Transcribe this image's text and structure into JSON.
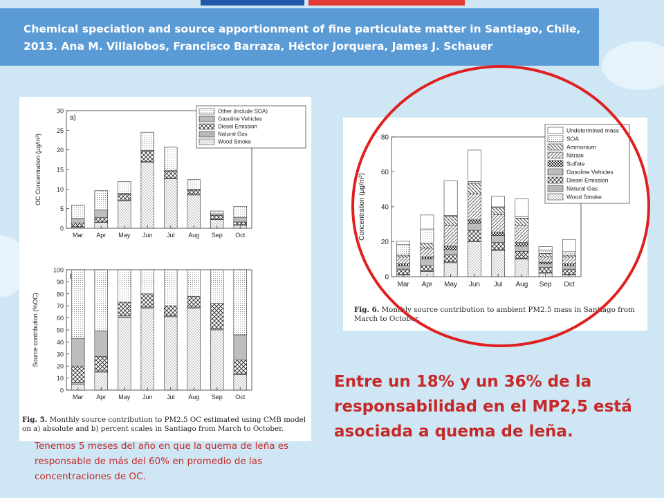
{
  "title": "Chemical speciation and source apportionment of fine particulate matter in Santiago, Chile, 2013. Ana M. Villalobos, Francisco Barraza, Héctor Jorquera, James J. Schauer",
  "note_small": "Tenemos 5 meses del año en que la quema de leña es responsable de más del 60% en promedio de las concentraciones de OC.",
  "note_big": "Entre un 18% y un 36% de la responsabilidad en el MP2,5 está asociada a quema de leña.",
  "colors": {
    "accent_red": "#c62828",
    "banner_blue": "#5b9bd5",
    "circle_red": "#e02020"
  },
  "fig5": {
    "caption_label": "Fig. 5.",
    "caption_text": " Monthly source contribution to PM2.5 OC estimated using CMB model on a) absolute and b) percent scales in Santiago from March to October."
  },
  "fig6": {
    "caption_label": "Fig. 6.",
    "caption_text": " Monthly source contribution to ambient PM2.5 mass in Santiago from March to October."
  },
  "chart_data": [
    {
      "type": "bar",
      "panel_label": "a)",
      "ylabel": "OC Concentration (μg/m³)",
      "ylim": [
        0,
        30
      ],
      "yticks": [
        0,
        5,
        10,
        15,
        20,
        25,
        30
      ],
      "categories": [
        "Mar",
        "Apr",
        "May",
        "Jun",
        "Jul",
        "Aug",
        "Sep",
        "Oct"
      ],
      "legend": "top-right",
      "series": [
        {
          "name": "Wood Smoke",
          "pattern": "dots",
          "values": [
            0.3,
            1.5,
            7.0,
            16.8,
            12.6,
            8.5,
            2.2,
            0.8
          ]
        },
        {
          "name": "Natural Gas",
          "pattern": "gray",
          "values": [
            0.1,
            0.1,
            0.2,
            0.2,
            0.2,
            0.2,
            0.1,
            0.1
          ]
        },
        {
          "name": "Diesel Emission",
          "pattern": "cross",
          "values": [
            0.9,
            1.1,
            1.4,
            2.6,
            1.7,
            1.0,
            1.0,
            0.7
          ]
        },
        {
          "name": "Gasoline Vehicles",
          "pattern": "vlines",
          "values": [
            1.2,
            2.0,
            0.3,
            0.3,
            0.3,
            0.3,
            0.4,
            1.2
          ]
        },
        {
          "name": "Other (include SOA)",
          "pattern": "fine",
          "values": [
            3.4,
            4.9,
            3.0,
            4.6,
            5.9,
            2.4,
            0.7,
            2.8
          ]
        }
      ]
    },
    {
      "type": "bar",
      "panel_label": "b)",
      "ylabel": "Source contribution (%OC)",
      "ylim": [
        0,
        100
      ],
      "yticks": [
        0,
        10,
        20,
        30,
        40,
        50,
        60,
        70,
        80,
        90,
        100
      ],
      "categories": [
        "Mar",
        "Apr",
        "May",
        "Jun",
        "Jul",
        "Aug",
        "Sep",
        "Oct"
      ],
      "series": [
        {
          "name": "Wood Smoke",
          "pattern": "dots",
          "values": [
            5,
            15,
            60,
            68,
            61,
            68,
            50,
            13
          ]
        },
        {
          "name": "Natural Gas",
          "pattern": "gray",
          "values": [
            1,
            1,
            2,
            1,
            1,
            1,
            1,
            1
          ]
        },
        {
          "name": "Diesel Emission",
          "pattern": "cross",
          "values": [
            14,
            12,
            11,
            11,
            8,
            9,
            21,
            11
          ]
        },
        {
          "name": "Gasoline Vehicles",
          "pattern": "vlines",
          "values": [
            23,
            21,
            0,
            0,
            0,
            0,
            0,
            21
          ]
        },
        {
          "name": "Other (include SOA)",
          "pattern": "fine",
          "values": [
            57,
            51,
            27,
            20,
            30,
            22,
            28,
            54
          ]
        }
      ]
    },
    {
      "type": "bar",
      "ylabel": "Concentration (μg/m³)",
      "ylim": [
        0,
        80
      ],
      "yticks": [
        0,
        20,
        40,
        60,
        80
      ],
      "categories": [
        "Mar",
        "Apr",
        "May",
        "Jun",
        "Jul",
        "Aug",
        "Sep",
        "Oct"
      ],
      "legend": "top-right",
      "series": [
        {
          "name": "Wood Smoke",
          "pattern": "dots",
          "values": [
            1,
            3,
            8,
            20,
            15,
            10,
            2,
            1
          ]
        },
        {
          "name": "Natural Gas",
          "pattern": "gray",
          "values": [
            0.3,
            0.3,
            0.5,
            0.5,
            0.5,
            0.5,
            0.3,
            0.3
          ]
        },
        {
          "name": "Diesel Emission",
          "pattern": "cross",
          "values": [
            3,
            3,
            4,
            6,
            4,
            4,
            3,
            3
          ]
        },
        {
          "name": "Gasoline Vehicles",
          "pattern": "vlines",
          "values": [
            2,
            4,
            3,
            4,
            4,
            3,
            2,
            2
          ]
        },
        {
          "name": "Sulfate",
          "pattern": "checker",
          "values": [
            1,
            1,
            2,
            2,
            2,
            2,
            1,
            1
          ]
        },
        {
          "name": "Nitrate",
          "pattern": "hatch",
          "values": [
            4,
            5,
            12,
            15,
            10,
            10,
            3,
            4
          ]
        },
        {
          "name": "Ammonium",
          "pattern": "backslash",
          "values": [
            1,
            3,
            5,
            6,
            4,
            4,
            2,
            1
          ]
        },
        {
          "name": "SOA",
          "pattern": "fine",
          "values": [
            6,
            8,
            0.5,
            1,
            0.5,
            1,
            2,
            2
          ]
        },
        {
          "name": "Undetermined mass",
          "pattern": "white",
          "values": [
            2,
            8,
            20,
            18,
            6,
            10,
            2,
            7
          ]
        }
      ]
    }
  ]
}
